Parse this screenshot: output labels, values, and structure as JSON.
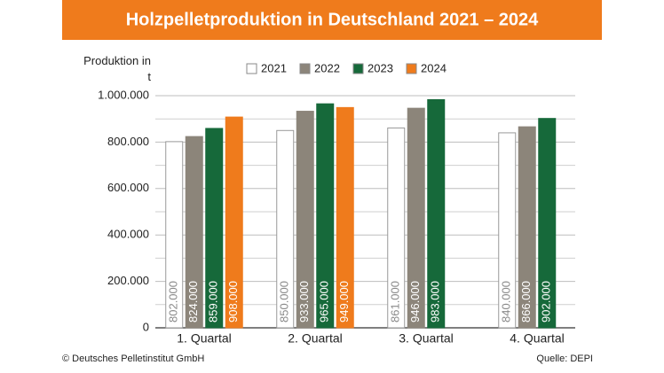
{
  "chart_data": {
    "type": "bar",
    "title": "Holzpelletproduktion in Deutschland 2021 – 2024",
    "ylabel": "Produktion in t",
    "categories": [
      "1. Quartal",
      "2. Quartal",
      "3. Quartal",
      "4. Quartal"
    ],
    "series": [
      {
        "name": "2021",
        "color": "#ffffff",
        "label_color": "#8a8a8a",
        "values": [
          802000,
          850000,
          861000,
          840000
        ],
        "value_labels": [
          "802.000",
          "850.000",
          "861.000",
          "840.000"
        ]
      },
      {
        "name": "2022",
        "color": "#8c857a",
        "label_color": "#ffffff",
        "values": [
          824000,
          933000,
          946000,
          866000
        ],
        "value_labels": [
          "824.000",
          "933.000",
          "946.000",
          "866.000"
        ]
      },
      {
        "name": "2023",
        "color": "#16693a",
        "label_color": "#ffffff",
        "values": [
          859000,
          965000,
          983000,
          902000
        ],
        "value_labels": [
          "859.000",
          "965.000",
          "983.000",
          "902.000"
        ]
      },
      {
        "name": "2024",
        "color": "#ef7b1c",
        "label_color": "#ffffff",
        "values": [
          908000,
          949000,
          null,
          null
        ],
        "value_labels": [
          "908.000",
          "949.000",
          null,
          null
        ]
      }
    ],
    "ylim": [
      0,
      1000000
    ],
    "yticks": [
      0,
      {
        "value": 200000,
        "label": "200.000"
      },
      {
        "value": 400000,
        "label": "400.000"
      },
      {
        "value": 600000,
        "label": "600.000"
      },
      {
        "value": 800000,
        "label": "800.000"
      },
      {
        "value": 1000000,
        "label": "1.000.000"
      }
    ],
    "minor_grid": [
      100000,
      300000,
      500000,
      700000,
      900000
    ],
    "grid": true,
    "legend": "top",
    "source_left": "© Deutsches Pelletinstitut GmbH",
    "source_right": "Quelle: DEPI"
  }
}
